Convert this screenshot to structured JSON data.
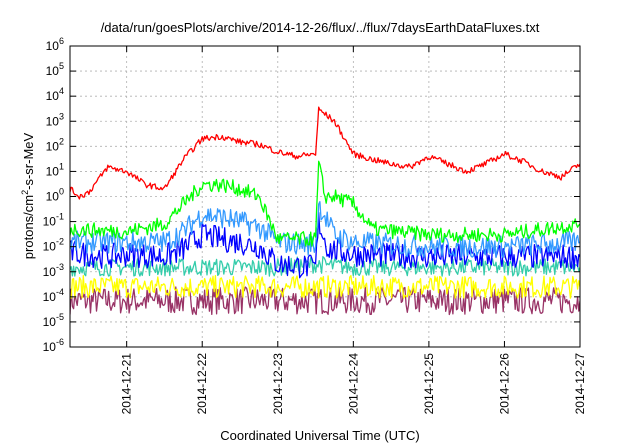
{
  "chart_data": {
    "type": "line",
    "title": "/data/run/goesPlots/archive/2014-12-26/flux/../flux/7daysEarthDataFluxes.txt",
    "xlabel": "Coordinated Universal Time (UTC)",
    "ylabel": {
      "base": "protons/cm",
      "exp": "2",
      "rest": "-s-sr-MeV"
    },
    "x_range": [
      "2014-12-20T06:00",
      "2014-12-27T00:00"
    ],
    "x_ticks": [
      "2014-12-21",
      "2014-12-22",
      "2014-12-23",
      "2014-12-24",
      "2014-12-25",
      "2014-12-26",
      "2014-12-27"
    ],
    "y_scale": "log",
    "y_range": [
      1e-06,
      1000000.0
    ],
    "y_ticks": [
      {
        "base": "10",
        "exp": "-6",
        "value": 1e-06
      },
      {
        "base": "10",
        "exp": "-5",
        "value": 1e-05
      },
      {
        "base": "10",
        "exp": "-4",
        "value": 0.0001
      },
      {
        "base": "10",
        "exp": "-3",
        "value": 0.001
      },
      {
        "base": "10",
        "exp": "-2",
        "value": 0.01
      },
      {
        "base": "10",
        "exp": "-1",
        "value": 0.1
      },
      {
        "base": "10",
        "exp": "0",
        "value": 1
      },
      {
        "base": "10",
        "exp": "1",
        "value": 10
      },
      {
        "base": "10",
        "exp": "2",
        "value": 100
      },
      {
        "base": "10",
        "exp": "3",
        "value": 1000
      },
      {
        "base": "10",
        "exp": "4",
        "value": 10000.0
      },
      {
        "base": "10",
        "exp": "5",
        "value": 100000.0
      },
      {
        "base": "10",
        "exp": "6",
        "value": 1000000.0
      }
    ],
    "grid": true,
    "series": [
      {
        "color": "#993366",
        "values": [
          [
            "2014-12-20T06:00",
            7e-05
          ],
          [
            "2014-12-21T00:00",
            7e-05
          ],
          [
            "2014-12-22T00:00",
            7e-05
          ],
          [
            "2014-12-23T00:00",
            7e-05
          ],
          [
            "2014-12-24T00:00",
            7e-05
          ],
          [
            "2014-12-25T00:00",
            7e-05
          ],
          [
            "2014-12-26T00:00",
            7e-05
          ],
          [
            "2014-12-27T00:00",
            7e-05
          ]
        ]
      },
      {
        "color": "#ffff00",
        "values": [
          [
            "2014-12-20T06:00",
            0.00025
          ],
          [
            "2014-12-21T00:00",
            0.00025
          ],
          [
            "2014-12-22T00:00",
            0.00025
          ],
          [
            "2014-12-23T00:00",
            0.00025
          ],
          [
            "2014-12-24T00:00",
            0.00025
          ],
          [
            "2014-12-25T00:00",
            0.00025
          ],
          [
            "2014-12-26T00:00",
            0.00025
          ],
          [
            "2014-12-27T00:00",
            0.00025
          ]
        ]
      },
      {
        "color": "#33ccaa",
        "values": [
          [
            "2014-12-20T06:00",
            0.0015
          ],
          [
            "2014-12-21T00:00",
            0.0015
          ],
          [
            "2014-12-22T00:00",
            0.0015
          ],
          [
            "2014-12-23T00:00",
            0.0015
          ],
          [
            "2014-12-23T12:00",
            0.002
          ],
          [
            "2014-12-24T00:00",
            0.0015
          ],
          [
            "2014-12-25T00:00",
            0.0015
          ],
          [
            "2014-12-26T00:00",
            0.0015
          ],
          [
            "2014-12-27T00:00",
            0.0015
          ]
        ]
      },
      {
        "color": "#0000ff",
        "values": [
          [
            "2014-12-20T06:00",
            0.006
          ],
          [
            "2014-12-20T18:00",
            0.004
          ],
          [
            "2014-12-21T00:00",
            0.005
          ],
          [
            "2014-12-21T12:00",
            0.004
          ],
          [
            "2014-12-21T18:00",
            0.008
          ],
          [
            "2014-12-22T00:00",
            0.03
          ],
          [
            "2014-12-22T06:00",
            0.02
          ],
          [
            "2014-12-22T12:00",
            0.015
          ],
          [
            "2014-12-22T18:00",
            0.01
          ],
          [
            "2014-12-23T00:00",
            0.002
          ],
          [
            "2014-12-23T12:00",
            0.0015
          ],
          [
            "2014-12-23T13:00",
            0.1
          ],
          [
            "2014-12-23T16:00",
            0.008
          ],
          [
            "2014-12-24T00:00",
            0.005
          ],
          [
            "2014-12-25T00:00",
            0.004
          ],
          [
            "2014-12-26T00:00",
            0.004
          ],
          [
            "2014-12-27T00:00",
            0.004
          ]
        ]
      },
      {
        "color": "#3399ff",
        "values": [
          [
            "2014-12-20T06:00",
            0.015
          ],
          [
            "2014-12-21T00:00",
            0.015
          ],
          [
            "2014-12-21T12:00",
            0.015
          ],
          [
            "2014-12-21T18:00",
            0.04
          ],
          [
            "2014-12-22T00:00",
            0.2
          ],
          [
            "2014-12-22T06:00",
            0.15
          ],
          [
            "2014-12-22T12:00",
            0.1
          ],
          [
            "2014-12-22T18:00",
            0.06
          ],
          [
            "2014-12-23T00:00",
            0.015
          ],
          [
            "2014-12-23T12:00",
            0.012
          ],
          [
            "2014-12-23T13:00",
            0.5
          ],
          [
            "2014-12-23T18:00",
            0.03
          ],
          [
            "2014-12-24T00:00",
            0.015
          ],
          [
            "2014-12-25T00:00",
            0.01
          ],
          [
            "2014-12-26T00:00",
            0.01
          ],
          [
            "2014-12-27T00:00",
            0.015
          ]
        ]
      },
      {
        "color": "#00ff00",
        "values": [
          [
            "2014-12-20T06:00",
            0.05
          ],
          [
            "2014-12-21T00:00",
            0.04
          ],
          [
            "2014-12-21T12:00",
            0.08
          ],
          [
            "2014-12-21T18:00",
            0.5
          ],
          [
            "2014-12-22T00:00",
            3
          ],
          [
            "2014-12-22T06:00",
            3
          ],
          [
            "2014-12-22T12:00",
            2
          ],
          [
            "2014-12-22T18:00",
            1
          ],
          [
            "2014-12-23T00:00",
            0.02
          ],
          [
            "2014-12-23T12:00",
            0.02
          ],
          [
            "2014-12-23T13:00",
            20
          ],
          [
            "2014-12-23T15:00",
            1
          ],
          [
            "2014-12-23T18:00",
            1
          ],
          [
            "2014-12-24T00:00",
            0.5
          ],
          [
            "2014-12-24T06:00",
            0.05
          ],
          [
            "2014-12-25T00:00",
            0.03
          ],
          [
            "2014-12-26T00:00",
            0.03
          ],
          [
            "2014-12-27T00:00",
            0.08
          ]
        ]
      },
      {
        "color": "#ff0000",
        "values": [
          [
            "2014-12-20T06:00",
            2
          ],
          [
            "2014-12-20T09:00",
            1
          ],
          [
            "2014-12-20T12:00",
            1.5
          ],
          [
            "2014-12-20T18:00",
            15
          ],
          [
            "2014-12-21T00:00",
            10
          ],
          [
            "2014-12-21T06:00",
            3
          ],
          [
            "2014-12-21T12:00",
            2
          ],
          [
            "2014-12-21T18:00",
            30
          ],
          [
            "2014-12-22T00:00",
            200
          ],
          [
            "2014-12-22T06:00",
            250
          ],
          [
            "2014-12-22T12:00",
            150
          ],
          [
            "2014-12-22T18:00",
            120
          ],
          [
            "2014-12-23T00:00",
            60
          ],
          [
            "2014-12-23T06:00",
            40
          ],
          [
            "2014-12-23T12:00",
            50
          ],
          [
            "2014-12-23T13:00",
            3000
          ],
          [
            "2014-12-23T18:00",
            1000
          ],
          [
            "2014-12-24T00:00",
            50
          ],
          [
            "2014-12-24T06:00",
            30
          ],
          [
            "2014-12-24T12:00",
            20
          ],
          [
            "2014-12-24T18:00",
            15
          ],
          [
            "2014-12-25T00:00",
            40
          ],
          [
            "2014-12-25T06:00",
            20
          ],
          [
            "2014-12-25T12:00",
            10
          ],
          [
            "2014-12-25T18:00",
            20
          ],
          [
            "2014-12-26T00:00",
            50
          ],
          [
            "2014-12-26T06:00",
            25
          ],
          [
            "2014-12-26T12:00",
            10
          ],
          [
            "2014-12-26T18:00",
            6
          ],
          [
            "2014-12-27T00:00",
            20
          ]
        ]
      }
    ]
  }
}
